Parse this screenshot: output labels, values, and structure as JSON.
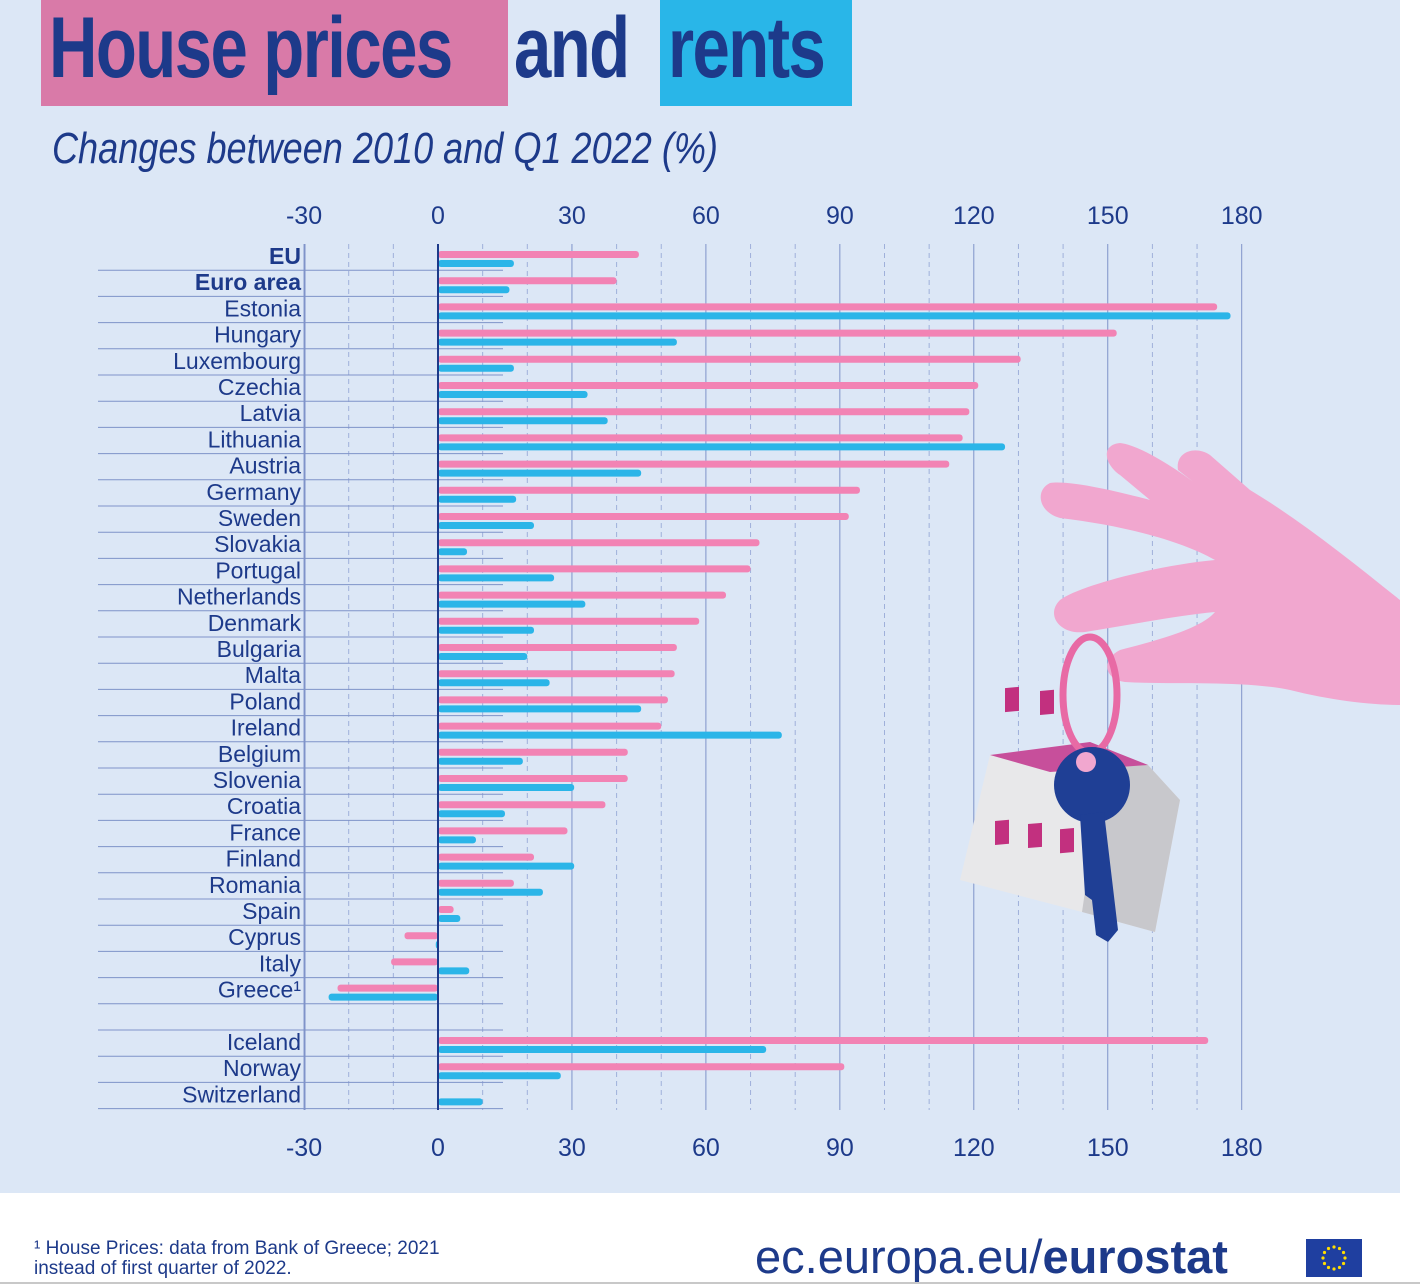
{
  "title": {
    "part1": "House prices",
    "part2": "and",
    "part3": "rents"
  },
  "subtitle": "Changes between 2010 and Q1 2022 (%)",
  "colors": {
    "house_prices": "#f283b4",
    "rents": "#2bb5e8",
    "text": "#1d3a8a",
    "background": "#dce7f6"
  },
  "chart_data": {
    "type": "bar",
    "orientation": "horizontal",
    "title": "",
    "xlabel": "",
    "ylabel": "",
    "xlim": [
      -30,
      180
    ],
    "xticks": [
      -30,
      0,
      30,
      60,
      90,
      120,
      150,
      180
    ],
    "tick_labels": [
      "-30",
      "0",
      "30",
      "60",
      "90",
      "120",
      "150",
      "180"
    ],
    "grid": "vertical",
    "legend": "none",
    "categories": [
      "EU",
      "Euro area",
      "Estonia",
      "Hungary",
      "Luxembourg",
      "Czechia",
      "Latvia",
      "Lithuania",
      "Austria",
      "Germany",
      "Sweden",
      "Slovakia",
      "Portugal",
      "Netherlands",
      "Denmark",
      "Bulgaria",
      "Malta",
      "Poland",
      "Ireland",
      "Belgium",
      "Slovenia",
      "Croatia",
      "France",
      "Finland",
      "Romania",
      "Spain",
      "Cyprus",
      "Italy",
      "Greece¹",
      "Iceland",
      "Norway",
      "Switzerland"
    ],
    "series": [
      {
        "values": [
          45,
          40,
          174.5,
          152,
          130.5,
          121,
          119,
          117.5,
          114.5,
          94.5,
          92,
          72,
          70,
          64.5,
          58.5,
          53.5,
          53,
          51.5,
          50,
          42.5,
          42.5,
          37.5,
          29,
          21.5,
          17,
          3.5,
          -7.5,
          -10.5,
          -22.5,
          172.5,
          91,
          null
        ]
      },
      {
        "values": [
          17,
          16,
          177.5,
          53.5,
          17,
          33.5,
          38,
          127,
          45.5,
          17.5,
          21.5,
          6.5,
          26,
          33,
          21.5,
          20,
          25,
          45.5,
          77,
          19,
          30.5,
          15,
          8.5,
          30.5,
          23.5,
          5,
          -0.5,
          7,
          -24.5,
          73.5,
          27.5,
          10
        ]
      }
    ]
  },
  "footnote": "¹ House Prices: data from Bank of Greece; 2021 instead of first quarter of 2022.",
  "source": {
    "prefix": "ec.europa.eu/",
    "brand": "eurostat"
  },
  "illustration": {
    "icon": "hand-holding-house-key-icon"
  }
}
